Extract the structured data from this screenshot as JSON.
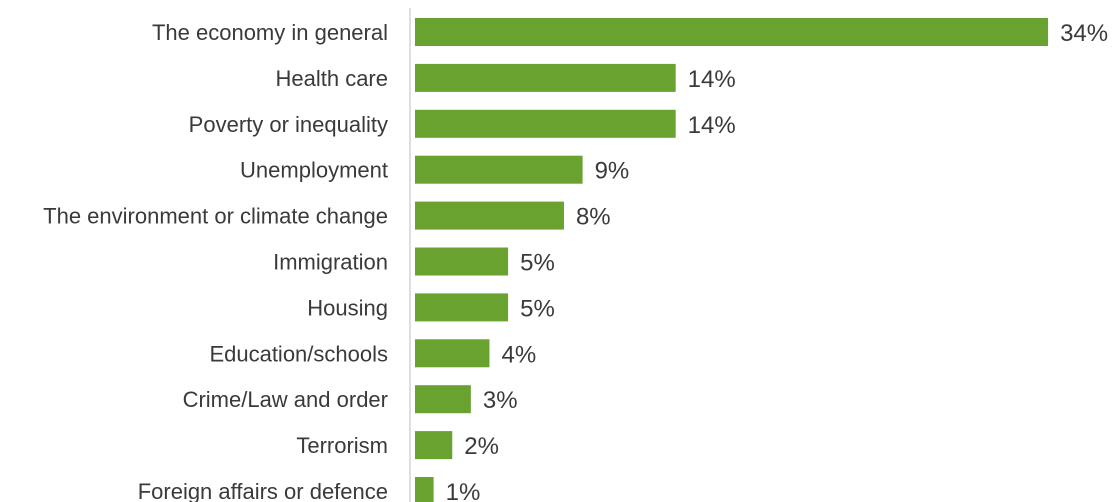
{
  "chart_data": {
    "type": "bar",
    "orientation": "horizontal",
    "categories": [
      "The economy in general",
      "Health care",
      "Poverty or inequality",
      "Unemployment",
      "The environment or climate change",
      "Immigration",
      "Housing",
      "Education/schools",
      "Crime/Law and order",
      "Terrorism",
      "Foreign affairs or defence"
    ],
    "values": [
      34,
      14,
      14,
      9,
      8,
      5,
      5,
      4,
      3,
      2,
      1
    ],
    "value_labels": [
      "34%",
      "14%",
      "14%",
      "9%",
      "8%",
      "5%",
      "5%",
      "4%",
      "3%",
      "2%",
      "1%"
    ],
    "unit": "%",
    "title": "",
    "xlabel": "",
    "ylabel": "",
    "xlim": [
      0,
      34
    ],
    "grid": false,
    "legend": "none",
    "bar_color": "#6aa22f"
  }
}
